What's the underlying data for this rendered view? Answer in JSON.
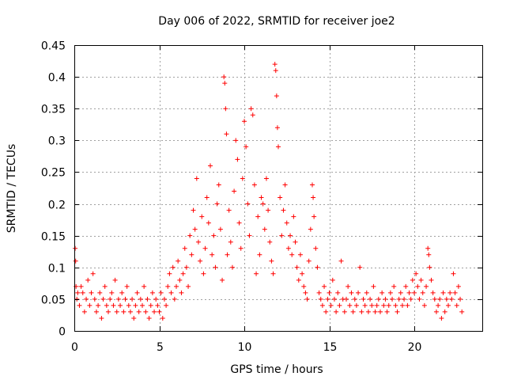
{
  "chart_data": {
    "type": "scatter",
    "title": "Day 006 of 2022, SRMTID for receiver joe2",
    "xlabel": "GPS time / hours",
    "ylabel": "SRMTID / TECUs",
    "xlim": [
      0,
      24
    ],
    "ylim": [
      0,
      0.45
    ],
    "xticks": [
      0,
      5,
      10,
      15,
      20
    ],
    "xtick_labels": [
      "0",
      "5",
      "10",
      "15",
      "20"
    ],
    "yticks": [
      0,
      0.05,
      0.1,
      0.15,
      0.2,
      0.25,
      0.3,
      0.35,
      0.4,
      0.45
    ],
    "ytick_labels": [
      "0",
      "0.05",
      "0.1",
      "0.15",
      "0.2",
      "0.25",
      "0.3",
      "0.35",
      "0.4",
      "0.45"
    ],
    "grid": true,
    "marker": "+",
    "color": "#ff0000",
    "series": [
      {
        "name": "SRMTID",
        "points": [
          [
            0.05,
            0.13
          ],
          [
            0.08,
            0.11
          ],
          [
            0.1,
            0.07
          ],
          [
            0.15,
            0.05
          ],
          [
            0.2,
            0.06
          ],
          [
            0.3,
            0.04
          ],
          [
            0.4,
            0.07
          ],
          [
            0.5,
            0.06
          ],
          [
            0.6,
            0.03
          ],
          [
            0.7,
            0.05
          ],
          [
            0.8,
            0.08
          ],
          [
            0.9,
            0.04
          ],
          [
            1.0,
            0.06
          ],
          [
            1.1,
            0.09
          ],
          [
            1.2,
            0.05
          ],
          [
            1.3,
            0.03
          ],
          [
            1.4,
            0.04
          ],
          [
            1.5,
            0.06
          ],
          [
            1.6,
            0.02
          ],
          [
            1.7,
            0.05
          ],
          [
            1.8,
            0.07
          ],
          [
            1.9,
            0.04
          ],
          [
            2.0,
            0.03
          ],
          [
            2.1,
            0.05
          ],
          [
            2.2,
            0.06
          ],
          [
            2.3,
            0.04
          ],
          [
            2.4,
            0.08
          ],
          [
            2.5,
            0.03
          ],
          [
            2.6,
            0.05
          ],
          [
            2.7,
            0.04
          ],
          [
            2.8,
            0.06
          ],
          [
            2.9,
            0.03
          ],
          [
            3.0,
            0.05
          ],
          [
            3.1,
            0.07
          ],
          [
            3.2,
            0.04
          ],
          [
            3.3,
            0.03
          ],
          [
            3.4,
            0.05
          ],
          [
            3.5,
            0.02
          ],
          [
            3.6,
            0.04
          ],
          [
            3.7,
            0.06
          ],
          [
            3.8,
            0.03
          ],
          [
            3.9,
            0.05
          ],
          [
            4.0,
            0.04
          ],
          [
            4.1,
            0.07
          ],
          [
            4.2,
            0.03
          ],
          [
            4.3,
            0.05
          ],
          [
            4.4,
            0.02
          ],
          [
            4.5,
            0.04
          ],
          [
            4.6,
            0.06
          ],
          [
            4.7,
            0.03
          ],
          [
            4.8,
            0.05
          ],
          [
            4.9,
            0.04
          ],
          [
            5.0,
            0.03
          ],
          [
            5.1,
            0.06
          ],
          [
            5.2,
            0.02
          ],
          [
            5.3,
            0.05
          ],
          [
            5.4,
            0.04
          ],
          [
            5.5,
            0.07
          ],
          [
            5.6,
            0.09
          ],
          [
            5.7,
            0.06
          ],
          [
            5.8,
            0.1
          ],
          [
            5.9,
            0.05
          ],
          [
            6.0,
            0.07
          ],
          [
            6.1,
            0.11
          ],
          [
            6.2,
            0.08
          ],
          [
            6.3,
            0.06
          ],
          [
            6.4,
            0.09
          ],
          [
            6.5,
            0.13
          ],
          [
            6.6,
            0.1
          ],
          [
            6.7,
            0.07
          ],
          [
            6.8,
            0.15
          ],
          [
            6.9,
            0.12
          ],
          [
            7.0,
            0.19
          ],
          [
            7.1,
            0.16
          ],
          [
            7.2,
            0.24
          ],
          [
            7.3,
            0.14
          ],
          [
            7.4,
            0.11
          ],
          [
            7.5,
            0.18
          ],
          [
            7.6,
            0.09
          ],
          [
            7.7,
            0.13
          ],
          [
            7.8,
            0.21
          ],
          [
            7.9,
            0.17
          ],
          [
            8.0,
            0.26
          ],
          [
            8.1,
            0.12
          ],
          [
            8.2,
            0.15
          ],
          [
            8.3,
            0.1
          ],
          [
            8.4,
            0.2
          ],
          [
            8.5,
            0.23
          ],
          [
            8.6,
            0.16
          ],
          [
            8.7,
            0.08
          ],
          [
            8.8,
            0.4
          ],
          [
            8.85,
            0.39
          ],
          [
            8.9,
            0.35
          ],
          [
            8.95,
            0.31
          ],
          [
            9.0,
            0.12
          ],
          [
            9.1,
            0.19
          ],
          [
            9.2,
            0.14
          ],
          [
            9.3,
            0.1
          ],
          [
            9.4,
            0.22
          ],
          [
            9.5,
            0.3
          ],
          [
            9.6,
            0.27
          ],
          [
            9.7,
            0.17
          ],
          [
            9.8,
            0.13
          ],
          [
            9.9,
            0.24
          ],
          [
            10.0,
            0.33
          ],
          [
            10.1,
            0.29
          ],
          [
            10.2,
            0.2
          ],
          [
            10.3,
            0.15
          ],
          [
            10.4,
            0.35
          ],
          [
            10.5,
            0.34
          ],
          [
            10.6,
            0.23
          ],
          [
            10.7,
            0.09
          ],
          [
            10.8,
            0.18
          ],
          [
            10.9,
            0.12
          ],
          [
            11.0,
            0.21
          ],
          [
            11.1,
            0.2
          ],
          [
            11.2,
            0.16
          ],
          [
            11.3,
            0.24
          ],
          [
            11.4,
            0.19
          ],
          [
            11.5,
            0.14
          ],
          [
            11.6,
            0.11
          ],
          [
            11.7,
            0.09
          ],
          [
            11.8,
            0.42
          ],
          [
            11.85,
            0.41
          ],
          [
            11.9,
            0.37
          ],
          [
            11.95,
            0.32
          ],
          [
            12.0,
            0.29
          ],
          [
            12.1,
            0.21
          ],
          [
            12.2,
            0.15
          ],
          [
            12.3,
            0.19
          ],
          [
            12.4,
            0.23
          ],
          [
            12.5,
            0.17
          ],
          [
            12.6,
            0.13
          ],
          [
            12.7,
            0.15
          ],
          [
            12.8,
            0.12
          ],
          [
            12.9,
            0.18
          ],
          [
            13.0,
            0.14
          ],
          [
            13.1,
            0.1
          ],
          [
            13.2,
            0.08
          ],
          [
            13.3,
            0.12
          ],
          [
            13.4,
            0.09
          ],
          [
            13.5,
            0.07
          ],
          [
            13.6,
            0.06
          ],
          [
            13.7,
            0.05
          ],
          [
            13.8,
            0.11
          ],
          [
            13.9,
            0.16
          ],
          [
            14.0,
            0.23
          ],
          [
            14.05,
            0.21
          ],
          [
            14.1,
            0.18
          ],
          [
            14.2,
            0.13
          ],
          [
            14.3,
            0.1
          ],
          [
            14.4,
            0.06
          ],
          [
            14.5,
            0.05
          ],
          [
            14.6,
            0.04
          ],
          [
            14.7,
            0.07
          ],
          [
            14.8,
            0.03
          ],
          [
            14.9,
            0.05
          ],
          [
            15.0,
            0.06
          ],
          [
            15.1,
            0.04
          ],
          [
            15.2,
            0.08
          ],
          [
            15.3,
            0.05
          ],
          [
            15.4,
            0.03
          ],
          [
            15.5,
            0.06
          ],
          [
            15.6,
            0.04
          ],
          [
            15.7,
            0.11
          ],
          [
            15.8,
            0.05
          ],
          [
            15.9,
            0.03
          ],
          [
            16.0,
            0.05
          ],
          [
            16.1,
            0.07
          ],
          [
            16.2,
            0.04
          ],
          [
            16.3,
            0.06
          ],
          [
            16.4,
            0.03
          ],
          [
            16.5,
            0.05
          ],
          [
            16.6,
            0.04
          ],
          [
            16.7,
            0.06
          ],
          [
            16.8,
            0.1
          ],
          [
            16.9,
            0.03
          ],
          [
            17.0,
            0.05
          ],
          [
            17.1,
            0.04
          ],
          [
            17.2,
            0.06
          ],
          [
            17.3,
            0.03
          ],
          [
            17.4,
            0.05
          ],
          [
            17.5,
            0.04
          ],
          [
            17.6,
            0.07
          ],
          [
            17.7,
            0.03
          ],
          [
            17.8,
            0.04
          ],
          [
            17.9,
            0.05
          ],
          [
            18.0,
            0.03
          ],
          [
            18.1,
            0.06
          ],
          [
            18.2,
            0.04
          ],
          [
            18.3,
            0.05
          ],
          [
            18.4,
            0.03
          ],
          [
            18.5,
            0.04
          ],
          [
            18.6,
            0.06
          ],
          [
            18.7,
            0.05
          ],
          [
            18.8,
            0.07
          ],
          [
            18.9,
            0.04
          ],
          [
            19.0,
            0.03
          ],
          [
            19.1,
            0.05
          ],
          [
            19.2,
            0.06
          ],
          [
            19.3,
            0.04
          ],
          [
            19.4,
            0.05
          ],
          [
            19.5,
            0.07
          ],
          [
            19.6,
            0.04
          ],
          [
            19.7,
            0.06
          ],
          [
            19.8,
            0.05
          ],
          [
            19.9,
            0.08
          ],
          [
            20.0,
            0.06
          ],
          [
            20.1,
            0.09
          ],
          [
            20.2,
            0.07
          ],
          [
            20.3,
            0.05
          ],
          [
            20.4,
            0.08
          ],
          [
            20.5,
            0.06
          ],
          [
            20.6,
            0.04
          ],
          [
            20.7,
            0.07
          ],
          [
            20.8,
            0.13
          ],
          [
            20.85,
            0.12
          ],
          [
            20.9,
            0.1
          ],
          [
            21.0,
            0.08
          ],
          [
            21.1,
            0.06
          ],
          [
            21.2,
            0.05
          ],
          [
            21.3,
            0.03
          ],
          [
            21.4,
            0.04
          ],
          [
            21.5,
            0.05
          ],
          [
            21.6,
            0.02
          ],
          [
            21.7,
            0.06
          ],
          [
            21.8,
            0.03
          ],
          [
            21.9,
            0.05
          ],
          [
            22.0,
            0.04
          ],
          [
            22.1,
            0.06
          ],
          [
            22.2,
            0.05
          ],
          [
            22.3,
            0.09
          ],
          [
            22.4,
            0.06
          ],
          [
            22.5,
            0.04
          ],
          [
            22.6,
            0.07
          ],
          [
            22.7,
            0.05
          ],
          [
            22.8,
            0.03
          ]
        ]
      }
    ]
  }
}
